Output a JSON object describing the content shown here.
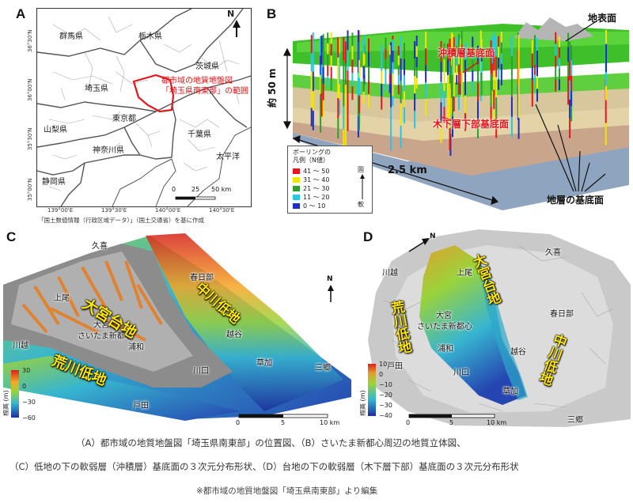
{
  "panelA": {
    "letter": "A",
    "prefectures": [
      "群馬県",
      "栃木県",
      "茨城県",
      "埼玉県",
      "東京都",
      "山梨県",
      "神奈川県",
      "千葉県",
      "静岡県"
    ],
    "ocean": "太平洋",
    "range_label_line1": "都市域の地質地盤図",
    "range_label_line2": "「埼玉県南東部」の範囲",
    "north": "N",
    "lat_labels": [
      "36°30'N",
      "36°00'N",
      "35°30'N",
      "35°00'N"
    ],
    "lon_labels": [
      "139°00'E",
      "139°30'E",
      "140°00'E",
      "140°30'E"
    ],
    "scale_ticks": [
      "0",
      "25",
      "50 km"
    ],
    "source": "「国土数値情報（行政区域データ）」（国土交通省）を基に作成"
  },
  "panelB": {
    "letter": "B",
    "surface_label": "地表面",
    "alluvium_base_label": "沖積層基底面",
    "kioroshi_base_label": "木下層下部基底面",
    "layer_base_label": "地層の基底面",
    "depth_label": "約 50 m",
    "width_label": "2.5 km",
    "legend_title": "ボーリングの",
    "legend_title2": "凡例（N値）",
    "legend_items": [
      {
        "label": "41 〜 50",
        "color": "#e31a1c"
      },
      {
        "label": "31 〜 40",
        "color": "#f2e600"
      },
      {
        "label": "21 〜 30",
        "color": "#2ca02c"
      },
      {
        "label": "11 〜 20",
        "color": "#27c7e6"
      },
      {
        "label": "0 〜 10",
        "color": "#1f2fbf"
      }
    ],
    "legend_hard": "固",
    "legend_soft": "軟"
  },
  "panelC": {
    "letter": "C",
    "places": [
      "久喜",
      "春日部",
      "上尾",
      "大宮",
      "さいたま新都心",
      "浦和",
      "越谷",
      "草加",
      "川越",
      "川口",
      "三郷",
      "戸田"
    ],
    "upland": "大宮台地",
    "lowland_naka": "中川低地",
    "lowland_ara": "荒川低地",
    "north": "N",
    "colorbar_title": "標高 (m)",
    "colorbar_ticks": [
      "30",
      "0",
      "−30",
      "−60"
    ],
    "scale_ticks": [
      "0",
      "5",
      "10 km"
    ]
  },
  "panelD": {
    "letter": "D",
    "places": [
      "川越",
      "上尾",
      "久喜",
      "春日部",
      "大宮",
      "さいたま新都心",
      "浦和",
      "越谷",
      "戸田",
      "川口",
      "草加",
      "三郷"
    ],
    "upland": "大宮台地",
    "lowland_naka": "中川低地",
    "lowland_ara": "荒川低地",
    "north": "N",
    "colorbar_title": "標高 (m)",
    "colorbar_ticks": [
      "10",
      "0",
      "−10",
      "−20",
      "−30",
      "−40"
    ],
    "scale_ticks": [
      "0",
      "5",
      "10 km"
    ]
  },
  "caption": {
    "line1": "（A）都市域の地質地盤図「埼玉県南東部」の位置図、（B）さいたま新都心周辺の地質立体図、",
    "line2": "（C）低地の下の軟弱層（沖積層）基底面の３次元分布形状、（D）台地の下の軟弱層（木下層下部）基底面の３次元分布形状",
    "line3": "※都市域の地質地盤図「埼玉県南東部」より編集"
  }
}
